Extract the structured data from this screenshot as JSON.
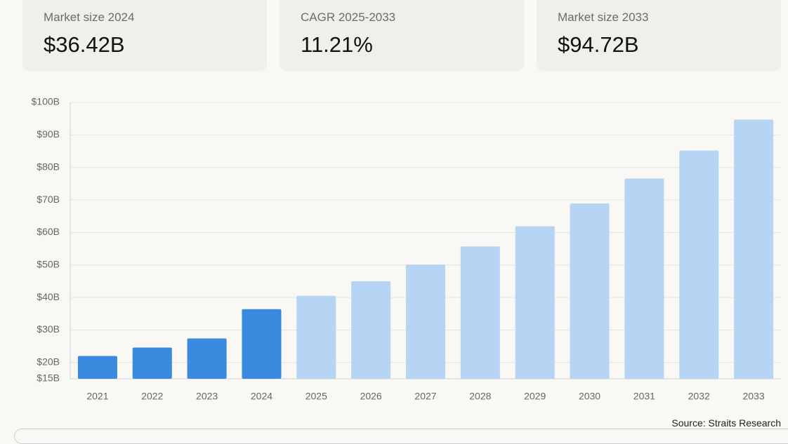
{
  "stats": [
    {
      "label": "Market size 2024",
      "value": "$36.42B"
    },
    {
      "label": "CAGR 2025-2033",
      "value": "11.21%"
    },
    {
      "label": "Market size 2033",
      "value": "$94.72B"
    }
  ],
  "chart_data": {
    "type": "bar",
    "categories": [
      "2021",
      "2022",
      "2023",
      "2024",
      "2025",
      "2026",
      "2027",
      "2028",
      "2029",
      "2030",
      "2031",
      "2032",
      "2033"
    ],
    "values": [
      22.0,
      24.6,
      27.4,
      36.42,
      40.5,
      45.0,
      50.1,
      55.7,
      61.9,
      68.9,
      76.6,
      85.2,
      94.72
    ],
    "colors": [
      "#3a8ae0",
      "#3a8ae0",
      "#3a8ae0",
      "#3a8ae0",
      "#b6d4f4",
      "#b6d4f4",
      "#b6d4f4",
      "#b6d4f4",
      "#b6d4f4",
      "#b6d4f4",
      "#b6d4f4",
      "#b6d4f4",
      "#b6d4f4"
    ],
    "ylim": [
      15,
      100
    ],
    "yticks": [
      {
        "value": 15,
        "label": "$15B"
      },
      {
        "value": 20,
        "label": "$20B"
      },
      {
        "value": 30,
        "label": "$30B"
      },
      {
        "value": 40,
        "label": "$40B"
      },
      {
        "value": 50,
        "label": "$50B"
      },
      {
        "value": 60,
        "label": "$60B"
      },
      {
        "value": 70,
        "label": "$70B"
      },
      {
        "value": 80,
        "label": "$80B"
      },
      {
        "value": 90,
        "label": "$90B"
      },
      {
        "value": 100,
        "label": "$100B"
      }
    ],
    "grid": true
  },
  "source": "Source: Straits Research"
}
